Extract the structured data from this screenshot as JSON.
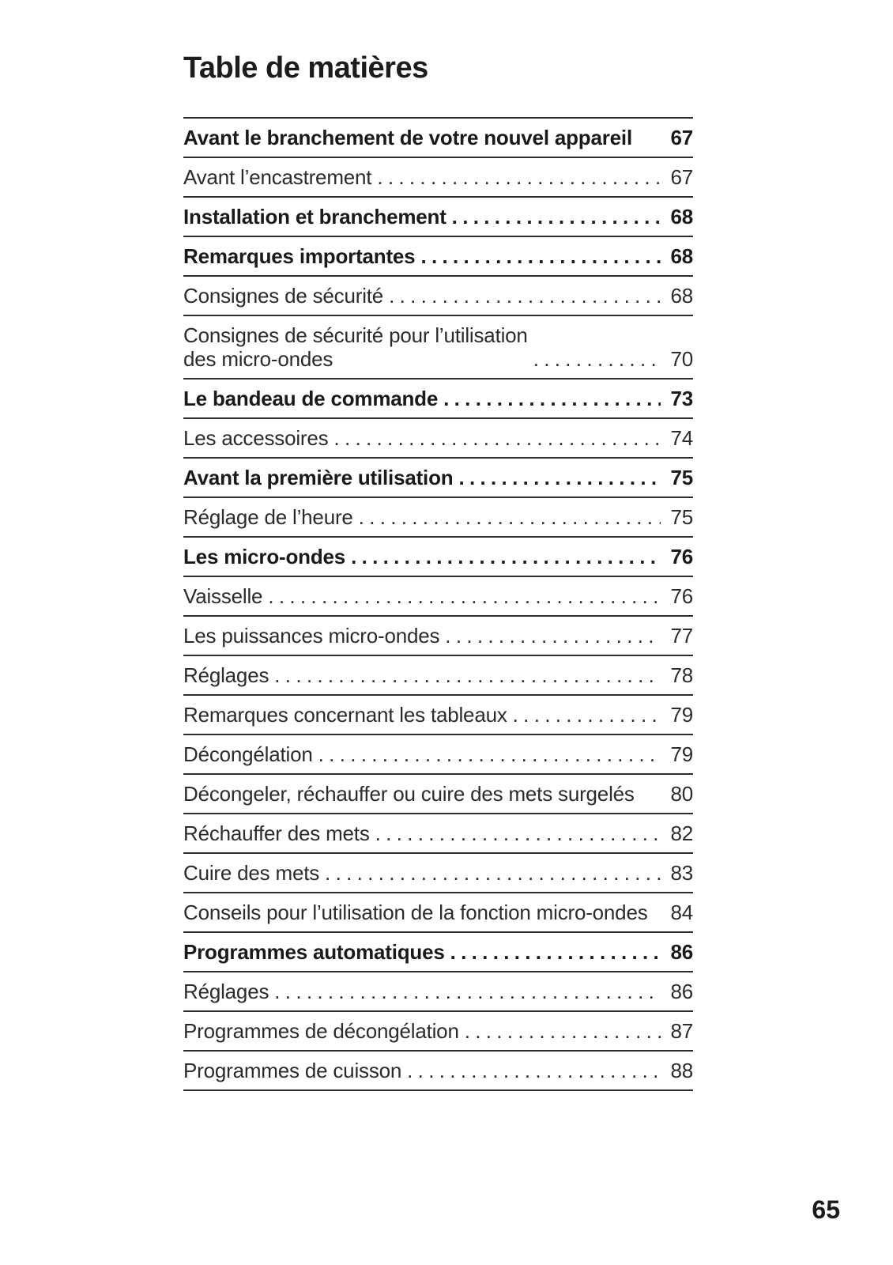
{
  "page": {
    "title": "Table de matières",
    "folio": "65"
  },
  "colors": {
    "text": "#2b2b2b",
    "bold_text": "#1a1a1a",
    "rule": "#2e2e2e",
    "background": "#ffffff"
  },
  "toc": {
    "entries": [
      {
        "label": "Avant le branchement de votre nouvel appareil",
        "page": "67",
        "bold": true,
        "dots": false
      },
      {
        "label": "Avant l’encastrement",
        "page": "67",
        "bold": false,
        "dots": true
      },
      {
        "label": "Installation et branchement",
        "page": "68",
        "bold": true,
        "dots": true
      },
      {
        "label": "Remarques importantes",
        "page": "68",
        "bold": true,
        "dots": true
      },
      {
        "label": "Consignes de sécurité",
        "page": "68",
        "bold": false,
        "dots": true
      },
      {
        "label": "Consignes de sécurité pour l’utilisation\ndes micro-ondes",
        "page": "70",
        "bold": false,
        "dots": true
      },
      {
        "label": "Le bandeau de commande",
        "page": "73",
        "bold": true,
        "dots": true
      },
      {
        "label": "Les accessoires",
        "page": "74",
        "bold": false,
        "dots": true
      },
      {
        "label": "Avant la première utilisation",
        "page": "75",
        "bold": true,
        "dots": true
      },
      {
        "label": "Réglage de l’heure",
        "page": "75",
        "bold": false,
        "dots": true
      },
      {
        "label": "Les micro-ondes",
        "page": "76",
        "bold": true,
        "dots": true
      },
      {
        "label": "Vaisselle",
        "page": "76",
        "bold": false,
        "dots": true
      },
      {
        "label": "Les puissances micro-ondes",
        "page": "77",
        "bold": false,
        "dots": true
      },
      {
        "label": "Réglages",
        "page": "78",
        "bold": false,
        "dots": true
      },
      {
        "label": "Remarques concernant les tableaux",
        "page": "79",
        "bold": false,
        "dots": true
      },
      {
        "label": "Décongélation",
        "page": "79",
        "bold": false,
        "dots": true
      },
      {
        "label": "Décongeler, réchauffer ou cuire des mets surgelés",
        "page": "80",
        "bold": false,
        "dots": false
      },
      {
        "label": "Réchauffer des mets",
        "page": "82",
        "bold": false,
        "dots": true
      },
      {
        "label": "Cuire des mets",
        "page": "83",
        "bold": false,
        "dots": true
      },
      {
        "label": "Conseils pour l’utilisation de la fonction micro-ondes",
        "page": "84",
        "bold": false,
        "dots": false
      },
      {
        "label": "Programmes automatiques",
        "page": "86",
        "bold": true,
        "dots": true
      },
      {
        "label": "Réglages",
        "page": "86",
        "bold": false,
        "dots": true
      },
      {
        "label": "Programmes de décongélation",
        "page": "87",
        "bold": false,
        "dots": true
      },
      {
        "label": "Programmes de cuisson",
        "page": "88",
        "bold": false,
        "dots": true
      }
    ]
  }
}
